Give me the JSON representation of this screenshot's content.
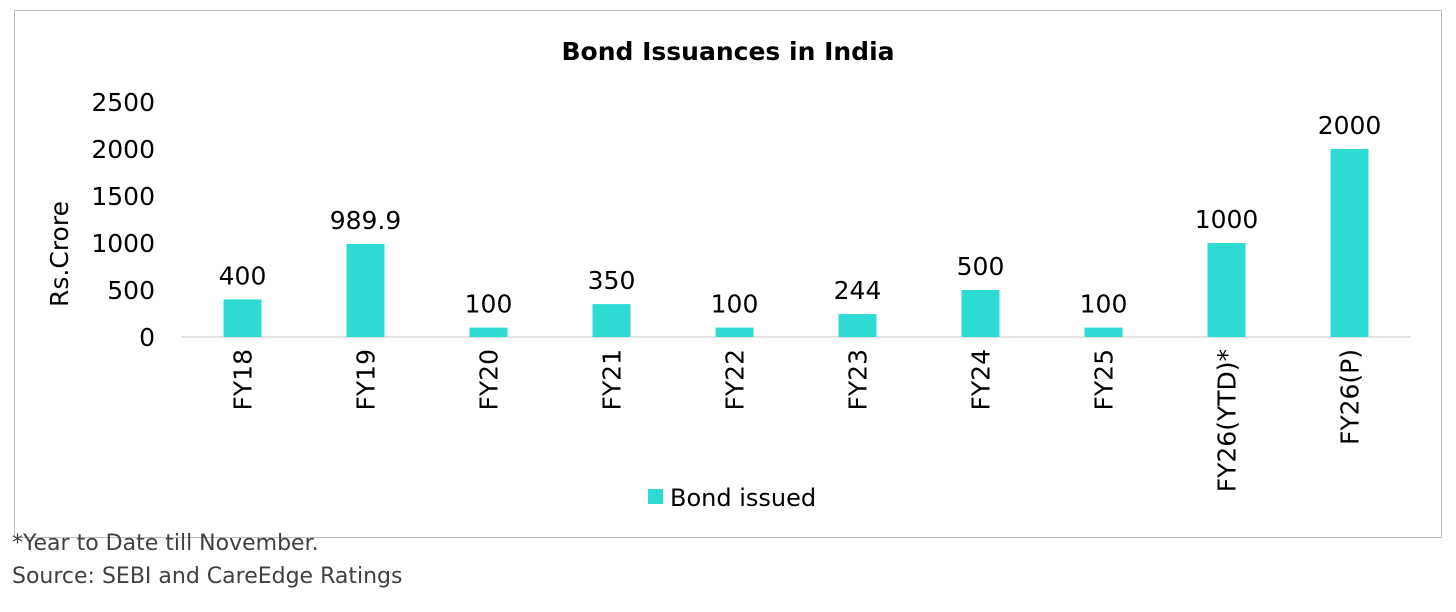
{
  "chart_data": {
    "type": "bar",
    "title": "Bond Issuances in India",
    "ylabel": "Rs.Crore",
    "xlabel": "",
    "categories": [
      "FY18",
      "FY19",
      "FY20",
      "FY21",
      "FY22",
      "FY23",
      "FY24",
      "FY25",
      "FY26(YTD)*",
      "FY26(P)"
    ],
    "series": [
      {
        "name": "Bond issued",
        "values": [
          400,
          989.9,
          100,
          350,
          100,
          244,
          500,
          100,
          1000,
          2000
        ],
        "data_labels": [
          "400",
          "989.9",
          "100",
          "350",
          "100",
          "244",
          "500",
          "100",
          "1000",
          "2000"
        ],
        "color": "#2edbd3"
      }
    ],
    "ylim": [
      0,
      2500
    ],
    "yticks": [
      "0",
      "500",
      "1000",
      "1500",
      "2000",
      "2500"
    ],
    "grid": false,
    "legend_position": "bottom"
  },
  "footnotes": {
    "note": "*Year to Date till November.",
    "source": "Source: SEBI and CareEdge Ratings"
  }
}
